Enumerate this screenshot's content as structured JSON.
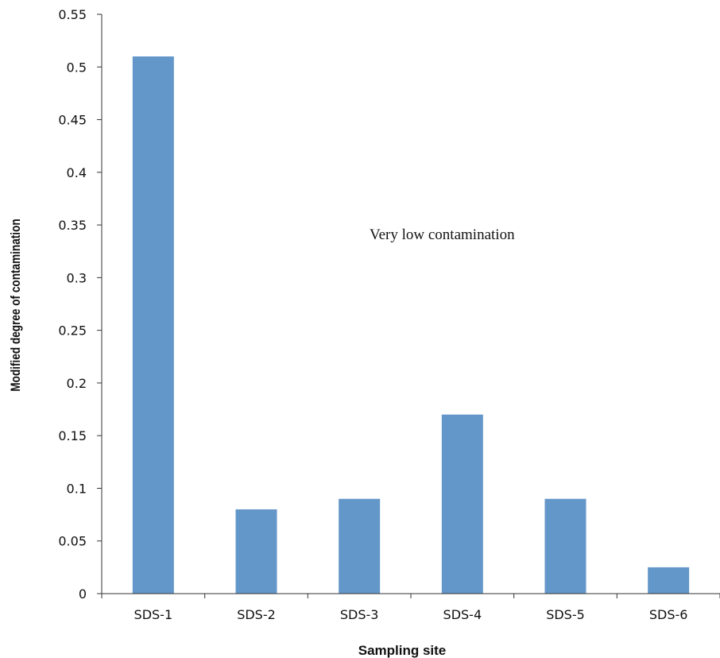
{
  "chart_data": {
    "type": "bar",
    "title": "",
    "xlabel": "Sampling site",
    "ylabel": "Modified degree of contamination",
    "categories": [
      "SDS-1",
      "SDS-2",
      "SDS-3",
      "SDS-4",
      "SDS-5",
      "SDS-6"
    ],
    "values": [
      0.51,
      0.08,
      0.09,
      0.17,
      0.09,
      0.025
    ],
    "ylim": [
      0,
      0.55
    ],
    "yticks": [
      "0",
      "0.05",
      "0.1",
      "0.15",
      "0.2",
      "0.25",
      "0.3",
      "0.35",
      "0.4",
      "0.45",
      "0.5",
      "0.55"
    ],
    "annotations": [
      "Very low contamination"
    ],
    "bar_color": "#6497c9",
    "grid": false,
    "legend": "none"
  }
}
